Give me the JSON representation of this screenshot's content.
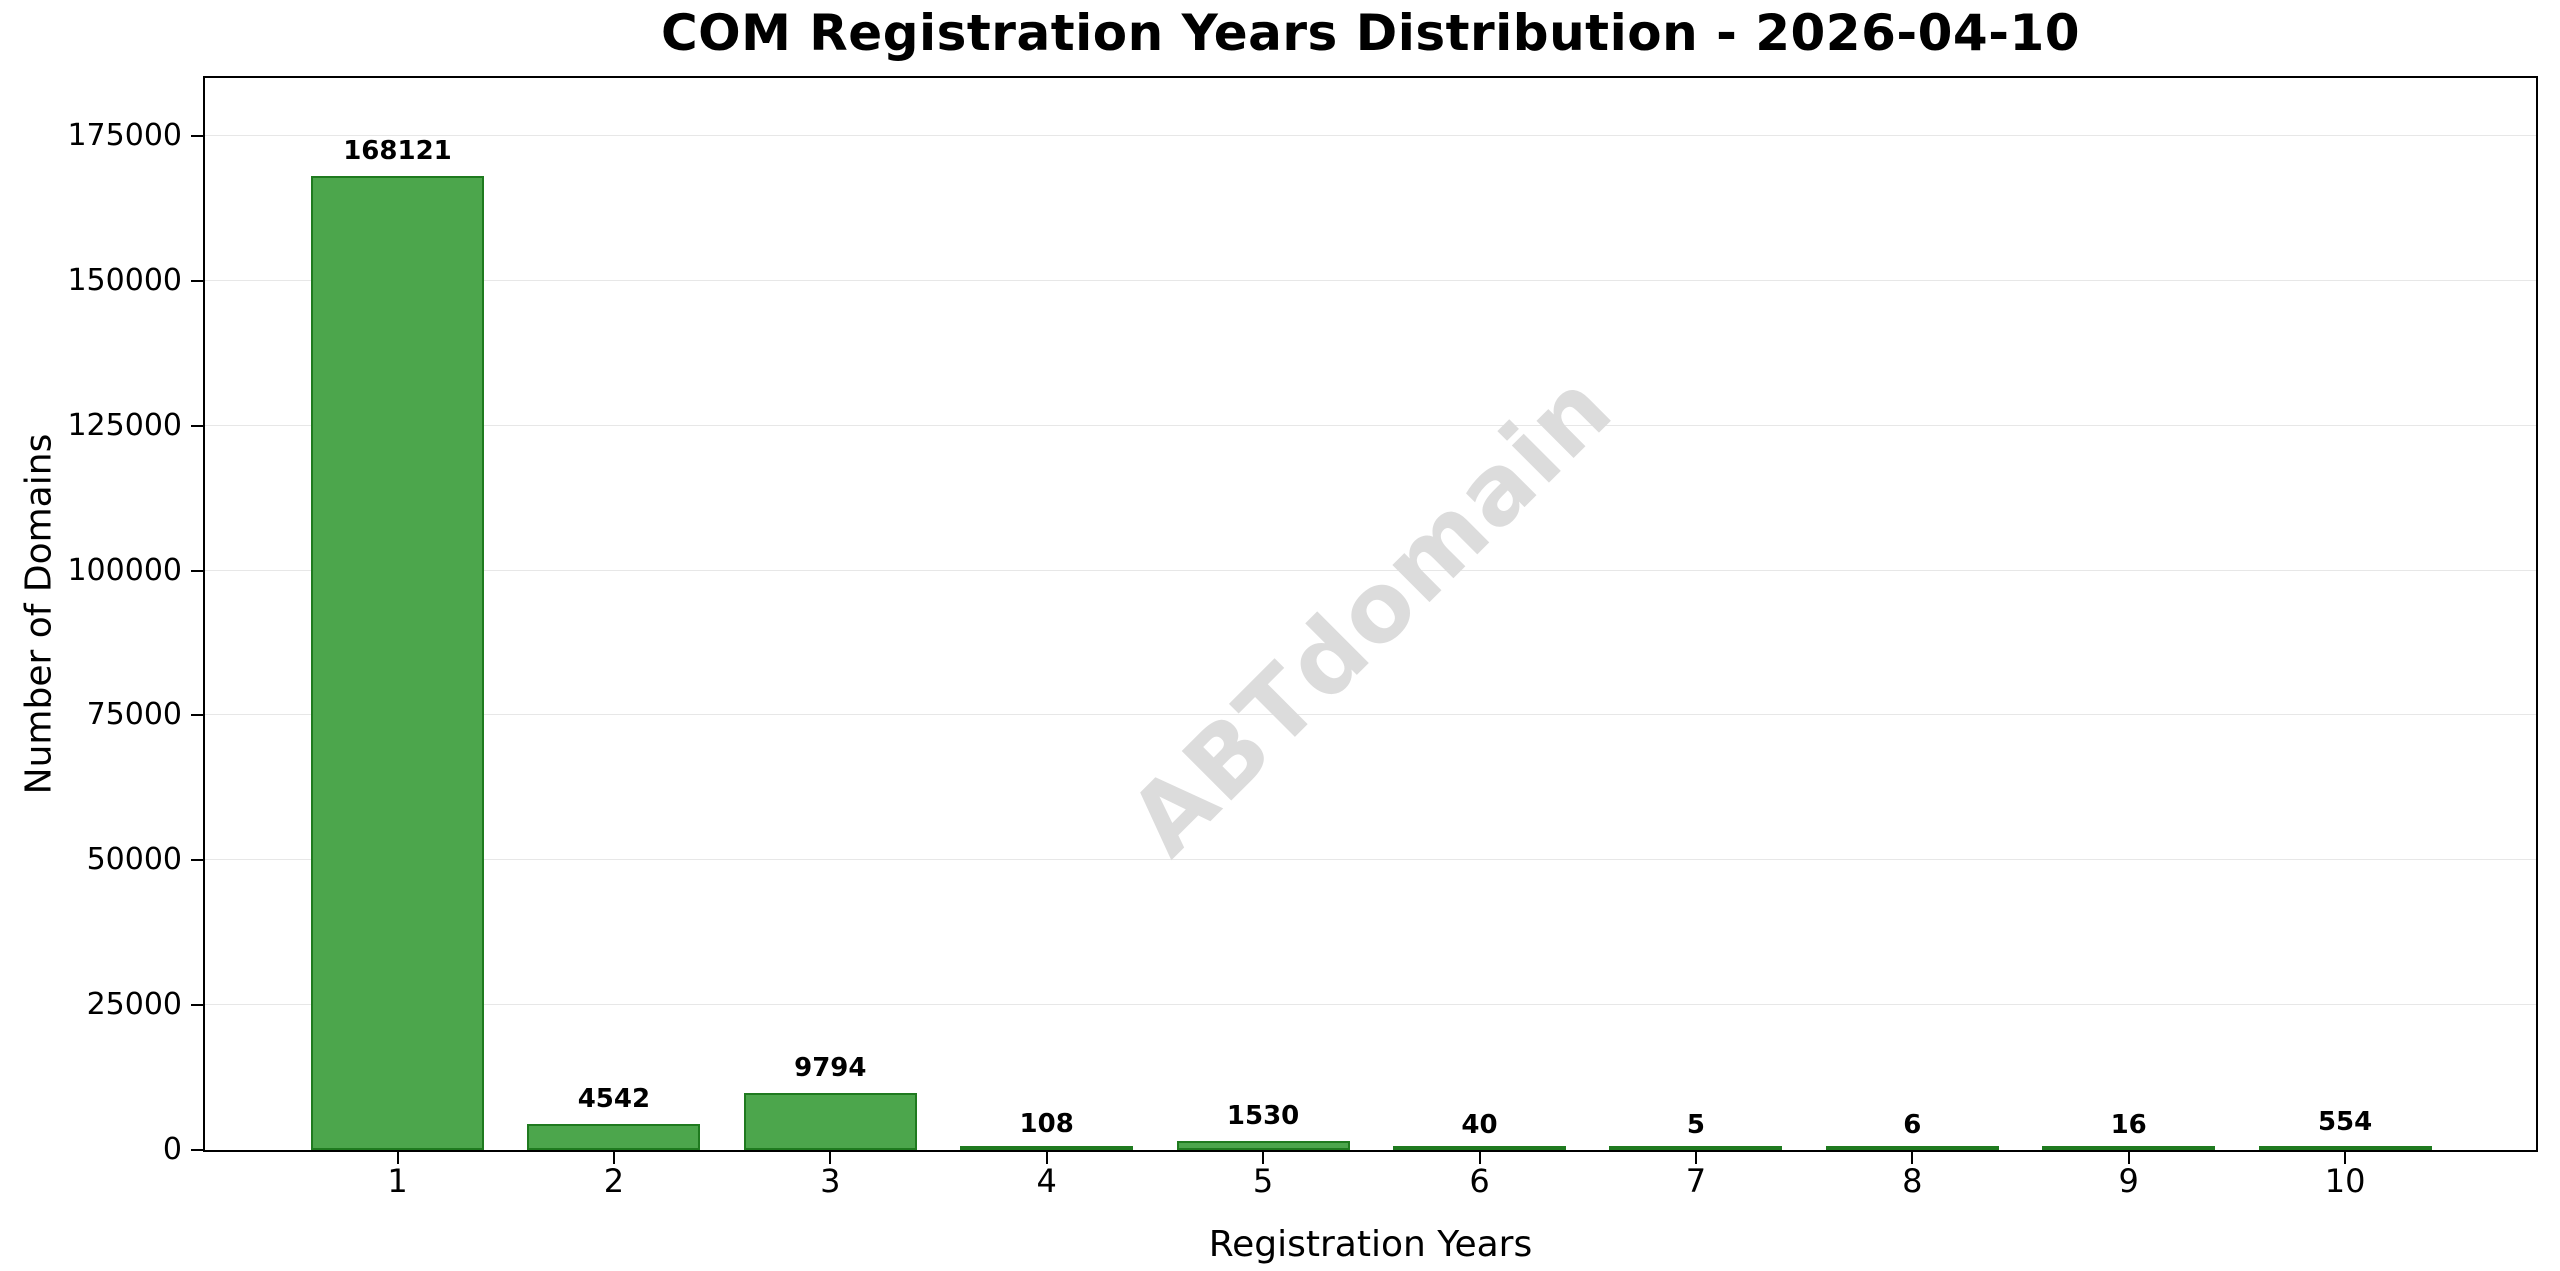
{
  "title": "COM Registration Years Distribution - 2026-04-10",
  "watermark": "ABTdomain",
  "chart_data": {
    "type": "bar",
    "title": "COM Registration Years Distribution - 2026-04-10",
    "xlabel": "Registration Years",
    "ylabel": "Number of Domains",
    "categories": [
      "1",
      "2",
      "3",
      "4",
      "5",
      "6",
      "7",
      "8",
      "9",
      "10"
    ],
    "values": [
      168121,
      4542,
      9794,
      108,
      1530,
      40,
      5,
      6,
      16,
      554
    ],
    "bar_labels": [
      "168121",
      "4542",
      "9794",
      "108",
      "1530",
      "40",
      "5",
      "6",
      "16",
      "554"
    ],
    "yticks": [
      0,
      25000,
      50000,
      75000,
      100000,
      125000,
      150000,
      175000
    ],
    "ylim": [
      0,
      185000
    ],
    "grid": "horizontal-only",
    "legend": "none",
    "watermark_text": "ABTdomain",
    "colors": {
      "bar_fill": "#4ca64c",
      "bar_edge": "#1f7a1f",
      "gridline": "#e7e7e7",
      "spine": "#000000",
      "text": "#000000",
      "watermark": "#dcdcdc",
      "background": "#ffffff"
    }
  }
}
